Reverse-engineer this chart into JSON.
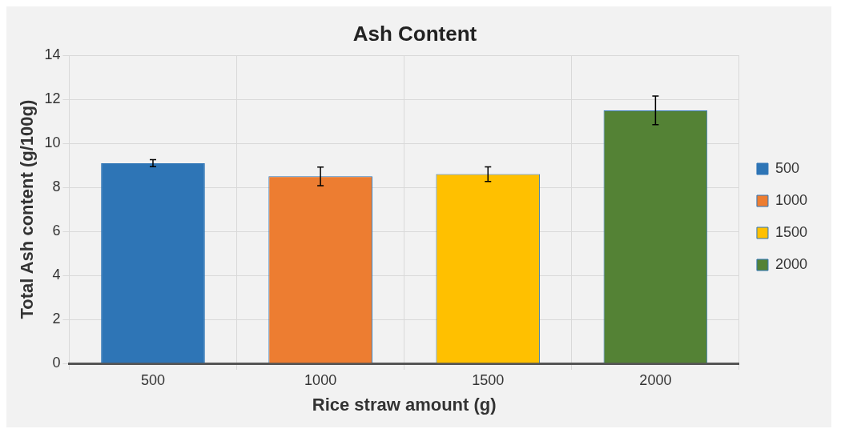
{
  "chart_data": {
    "type": "bar",
    "title": "Ash Content",
    "xlabel": "Rice straw amount (g)",
    "ylabel": "Total Ash content (g/100g)",
    "categories": [
      "500",
      "1000",
      "1500",
      "2000"
    ],
    "series": [
      {
        "name": "500",
        "color": "#2e75b6",
        "values": [
          9.1,
          null,
          null,
          null
        ],
        "errors": [
          0.16,
          null,
          null,
          null
        ]
      },
      {
        "name": "1000",
        "color": "#ed7d31",
        "values": [
          null,
          8.5,
          null,
          null
        ],
        "errors": [
          null,
          0.42,
          null,
          null
        ]
      },
      {
        "name": "1500",
        "color": "#ffc000",
        "values": [
          null,
          null,
          8.6,
          null
        ],
        "errors": [
          null,
          null,
          0.33,
          null
        ]
      },
      {
        "name": "2000",
        "color": "#548235",
        "values": [
          null,
          null,
          null,
          11.5
        ],
        "errors": [
          null,
          null,
          null,
          0.65
        ]
      }
    ],
    "ylim": [
      0,
      14
    ],
    "yticks": [
      0,
      2,
      4,
      6,
      8,
      10,
      12,
      14
    ],
    "grid": true,
    "legend": "right"
  }
}
